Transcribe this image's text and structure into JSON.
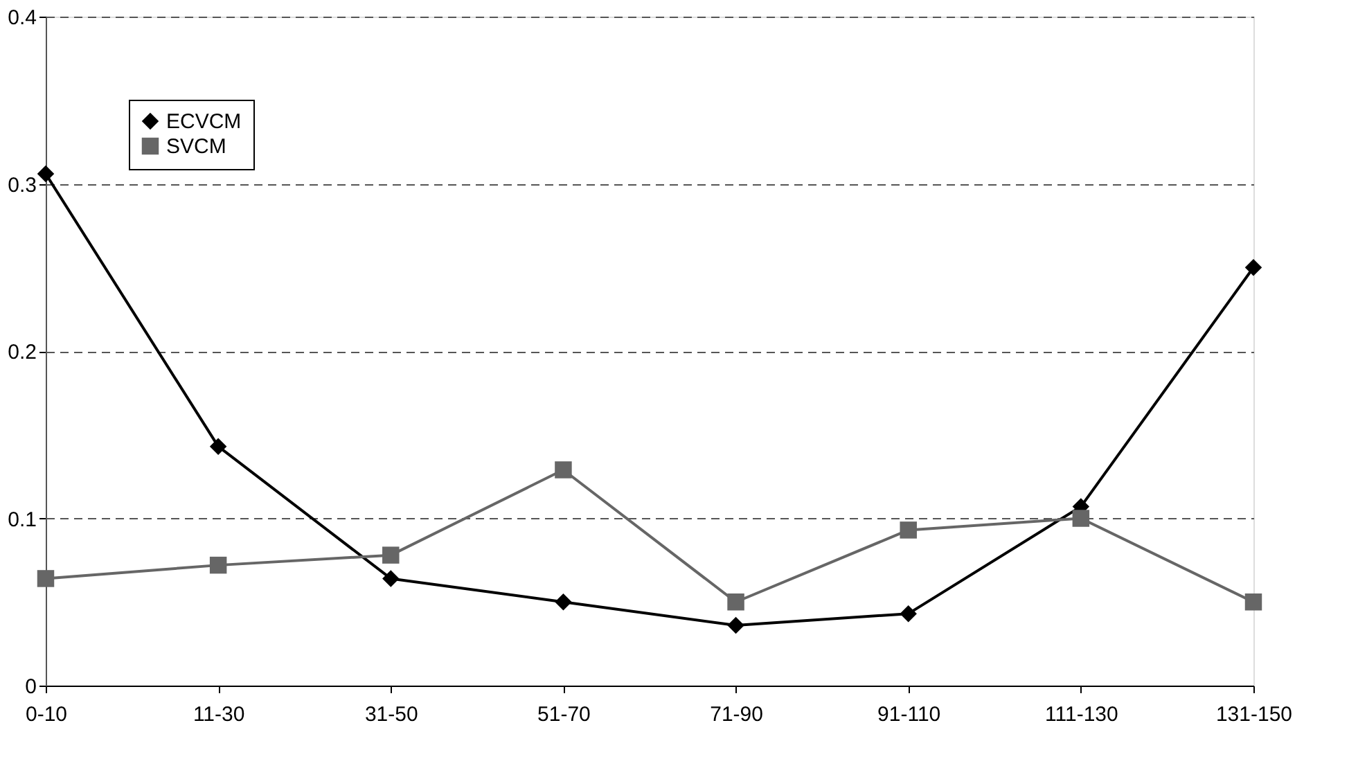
{
  "chart_data": {
    "type": "line",
    "categories": [
      "0-10",
      "11-30",
      "31-50",
      "51-70",
      "71-90",
      "91-110",
      "111-130",
      "131-150"
    ],
    "series": [
      {
        "name": "ECVCM",
        "color": "#000000",
        "marker": "diamond",
        "values": [
          0.306,
          0.143,
          0.064,
          0.05,
          0.036,
          0.043,
          0.107,
          0.25
        ]
      },
      {
        "name": "SVCM",
        "color": "#666666",
        "marker": "square",
        "values": [
          0.064,
          0.072,
          0.078,
          0.129,
          0.05,
          0.093,
          0.1,
          0.05
        ]
      }
    ],
    "ylim": [
      0,
      0.4
    ],
    "yticks": [
      0,
      0.1,
      0.2,
      0.3,
      0.4
    ],
    "grid": "y",
    "legend": "top left",
    "line_style": "solid"
  }
}
